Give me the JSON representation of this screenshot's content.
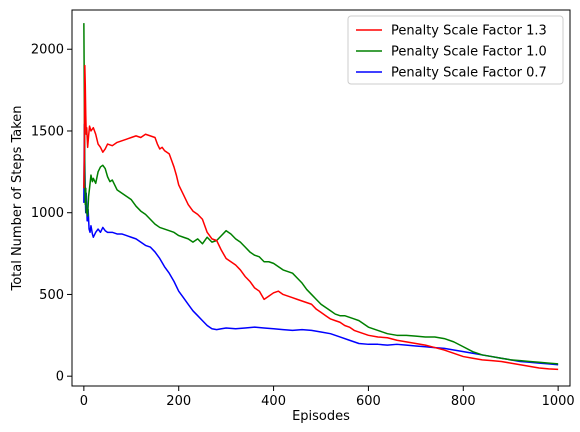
{
  "chart_data": {
    "type": "line",
    "title": "",
    "xlabel": "Episodes",
    "ylabel": "Total Number of Steps Taken",
    "xlim": [
      -25,
      1025
    ],
    "ylim": [
      -60,
      2240
    ],
    "xticks": [
      0,
      200,
      400,
      600,
      800,
      1000
    ],
    "yticks": [
      0,
      500,
      1000,
      1500,
      2000
    ],
    "grid": false,
    "legend_position": "top-right",
    "series": [
      {
        "name": "Penalty Scale Factor 1.3",
        "color": "#ff0000",
        "points": [
          [
            0,
            1150
          ],
          [
            1,
            1350
          ],
          [
            2,
            1900
          ],
          [
            3,
            1780
          ],
          [
            4,
            1600
          ],
          [
            5,
            1480
          ],
          [
            6,
            1520
          ],
          [
            8,
            1400
          ],
          [
            10,
            1470
          ],
          [
            12,
            1530
          ],
          [
            15,
            1500
          ],
          [
            20,
            1520
          ],
          [
            25,
            1480
          ],
          [
            30,
            1420
          ],
          [
            35,
            1400
          ],
          [
            40,
            1370
          ],
          [
            45,
            1390
          ],
          [
            50,
            1420
          ],
          [
            60,
            1410
          ],
          [
            70,
            1430
          ],
          [
            80,
            1440
          ],
          [
            90,
            1450
          ],
          [
            100,
            1460
          ],
          [
            110,
            1470
          ],
          [
            120,
            1460
          ],
          [
            130,
            1480
          ],
          [
            140,
            1470
          ],
          [
            150,
            1460
          ],
          [
            155,
            1420
          ],
          [
            160,
            1390
          ],
          [
            165,
            1400
          ],
          [
            170,
            1380
          ],
          [
            175,
            1370
          ],
          [
            180,
            1360
          ],
          [
            185,
            1320
          ],
          [
            190,
            1280
          ],
          [
            195,
            1230
          ],
          [
            200,
            1170
          ],
          [
            210,
            1110
          ],
          [
            220,
            1050
          ],
          [
            230,
            1010
          ],
          [
            240,
            990
          ],
          [
            250,
            960
          ],
          [
            260,
            880
          ],
          [
            270,
            840
          ],
          [
            280,
            830
          ],
          [
            290,
            770
          ],
          [
            300,
            720
          ],
          [
            310,
            700
          ],
          [
            320,
            680
          ],
          [
            330,
            650
          ],
          [
            340,
            610
          ],
          [
            350,
            580
          ],
          [
            360,
            540
          ],
          [
            370,
            520
          ],
          [
            380,
            470
          ],
          [
            390,
            490
          ],
          [
            400,
            510
          ],
          [
            410,
            520
          ],
          [
            420,
            500
          ],
          [
            430,
            490
          ],
          [
            440,
            480
          ],
          [
            450,
            470
          ],
          [
            460,
            460
          ],
          [
            470,
            450
          ],
          [
            480,
            440
          ],
          [
            490,
            410
          ],
          [
            500,
            390
          ],
          [
            510,
            370
          ],
          [
            520,
            350
          ],
          [
            530,
            340
          ],
          [
            540,
            330
          ],
          [
            550,
            310
          ],
          [
            560,
            300
          ],
          [
            570,
            280
          ],
          [
            580,
            270
          ],
          [
            590,
            260
          ],
          [
            600,
            250
          ],
          [
            620,
            240
          ],
          [
            640,
            235
          ],
          [
            660,
            220
          ],
          [
            680,
            210
          ],
          [
            700,
            200
          ],
          [
            720,
            190
          ],
          [
            740,
            175
          ],
          [
            760,
            160
          ],
          [
            780,
            140
          ],
          [
            800,
            120
          ],
          [
            820,
            110
          ],
          [
            840,
            100
          ],
          [
            860,
            95
          ],
          [
            880,
            90
          ],
          [
            900,
            80
          ],
          [
            920,
            70
          ],
          [
            940,
            60
          ],
          [
            960,
            50
          ],
          [
            980,
            45
          ],
          [
            1000,
            42
          ]
        ]
      },
      {
        "name": "Penalty Scale Factor 1.0",
        "color": "#008000",
        "points": [
          [
            0,
            2160
          ],
          [
            1,
            1700
          ],
          [
            2,
            1200
          ],
          [
            3,
            1050
          ],
          [
            4,
            1150
          ],
          [
            5,
            1000
          ],
          [
            6,
            1020
          ],
          [
            8,
            980
          ],
          [
            10,
            1100
          ],
          [
            12,
            1150
          ],
          [
            15,
            1230
          ],
          [
            18,
            1190
          ],
          [
            20,
            1210
          ],
          [
            25,
            1180
          ],
          [
            30,
            1250
          ],
          [
            35,
            1280
          ],
          [
            40,
            1290
          ],
          [
            45,
            1270
          ],
          [
            50,
            1220
          ],
          [
            55,
            1190
          ],
          [
            60,
            1200
          ],
          [
            70,
            1140
          ],
          [
            80,
            1120
          ],
          [
            90,
            1100
          ],
          [
            100,
            1080
          ],
          [
            110,
            1040
          ],
          [
            120,
            1010
          ],
          [
            130,
            990
          ],
          [
            140,
            960
          ],
          [
            150,
            930
          ],
          [
            160,
            910
          ],
          [
            170,
            900
          ],
          [
            180,
            890
          ],
          [
            190,
            880
          ],
          [
            200,
            860
          ],
          [
            210,
            850
          ],
          [
            220,
            840
          ],
          [
            230,
            820
          ],
          [
            240,
            840
          ],
          [
            250,
            810
          ],
          [
            260,
            850
          ],
          [
            270,
            820
          ],
          [
            280,
            830
          ],
          [
            290,
            860
          ],
          [
            300,
            890
          ],
          [
            310,
            870
          ],
          [
            320,
            840
          ],
          [
            330,
            820
          ],
          [
            340,
            790
          ],
          [
            350,
            760
          ],
          [
            360,
            740
          ],
          [
            370,
            730
          ],
          [
            380,
            700
          ],
          [
            390,
            700
          ],
          [
            400,
            690
          ],
          [
            410,
            670
          ],
          [
            420,
            650
          ],
          [
            430,
            640
          ],
          [
            440,
            630
          ],
          [
            450,
            600
          ],
          [
            460,
            570
          ],
          [
            470,
            530
          ],
          [
            480,
            500
          ],
          [
            490,
            470
          ],
          [
            500,
            440
          ],
          [
            510,
            420
          ],
          [
            520,
            400
          ],
          [
            530,
            380
          ],
          [
            540,
            370
          ],
          [
            550,
            370
          ],
          [
            560,
            360
          ],
          [
            570,
            350
          ],
          [
            580,
            340
          ],
          [
            590,
            320
          ],
          [
            600,
            300
          ],
          [
            620,
            280
          ],
          [
            640,
            260
          ],
          [
            660,
            250
          ],
          [
            680,
            250
          ],
          [
            700,
            245
          ],
          [
            720,
            240
          ],
          [
            740,
            240
          ],
          [
            760,
            230
          ],
          [
            780,
            210
          ],
          [
            800,
            180
          ],
          [
            820,
            150
          ],
          [
            840,
            130
          ],
          [
            860,
            120
          ],
          [
            880,
            110
          ],
          [
            900,
            100
          ],
          [
            920,
            95
          ],
          [
            940,
            90
          ],
          [
            960,
            85
          ],
          [
            980,
            80
          ],
          [
            1000,
            75
          ]
        ]
      },
      {
        "name": "Penalty Scale Factor 0.7",
        "color": "#0000ff",
        "points": [
          [
            0,
            1060
          ],
          [
            1,
            1540
          ],
          [
            2,
            1300
          ],
          [
            3,
            1100
          ],
          [
            4,
            1000
          ],
          [
            5,
            1120
          ],
          [
            7,
            950
          ],
          [
            9,
            1020
          ],
          [
            11,
            900
          ],
          [
            13,
            880
          ],
          [
            15,
            920
          ],
          [
            18,
            870
          ],
          [
            20,
            850
          ],
          [
            25,
            880
          ],
          [
            30,
            900
          ],
          [
            35,
            880
          ],
          [
            40,
            910
          ],
          [
            45,
            890
          ],
          [
            50,
            880
          ],
          [
            60,
            880
          ],
          [
            70,
            870
          ],
          [
            80,
            870
          ],
          [
            90,
            860
          ],
          [
            100,
            850
          ],
          [
            110,
            840
          ],
          [
            120,
            820
          ],
          [
            130,
            800
          ],
          [
            140,
            790
          ],
          [
            150,
            760
          ],
          [
            160,
            720
          ],
          [
            170,
            670
          ],
          [
            180,
            630
          ],
          [
            190,
            580
          ],
          [
            200,
            520
          ],
          [
            210,
            480
          ],
          [
            220,
            440
          ],
          [
            230,
            400
          ],
          [
            240,
            370
          ],
          [
            250,
            340
          ],
          [
            260,
            310
          ],
          [
            270,
            290
          ],
          [
            280,
            285
          ],
          [
            290,
            290
          ],
          [
            300,
            295
          ],
          [
            320,
            290
          ],
          [
            340,
            295
          ],
          [
            360,
            300
          ],
          [
            380,
            295
          ],
          [
            400,
            290
          ],
          [
            420,
            285
          ],
          [
            440,
            280
          ],
          [
            460,
            285
          ],
          [
            480,
            280
          ],
          [
            500,
            270
          ],
          [
            520,
            260
          ],
          [
            540,
            240
          ],
          [
            560,
            220
          ],
          [
            580,
            200
          ],
          [
            600,
            195
          ],
          [
            620,
            195
          ],
          [
            640,
            190
          ],
          [
            660,
            195
          ],
          [
            680,
            190
          ],
          [
            700,
            185
          ],
          [
            720,
            180
          ],
          [
            740,
            175
          ],
          [
            760,
            170
          ],
          [
            780,
            160
          ],
          [
            800,
            150
          ],
          [
            820,
            140
          ],
          [
            840,
            130
          ],
          [
            860,
            120
          ],
          [
            880,
            110
          ],
          [
            900,
            100
          ],
          [
            920,
            90
          ],
          [
            940,
            85
          ],
          [
            960,
            80
          ],
          [
            980,
            75
          ],
          [
            1000,
            70
          ]
        ]
      }
    ]
  }
}
